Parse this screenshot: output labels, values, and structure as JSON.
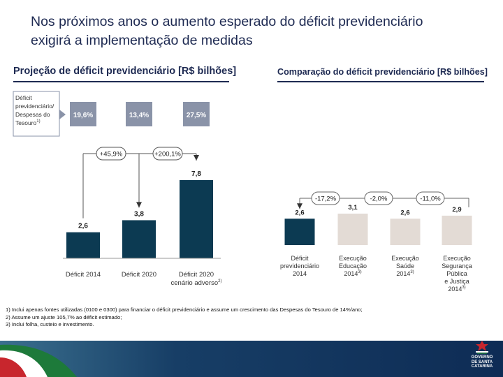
{
  "slide": {
    "title_line1": "Nos próximos anos o aumento esperado do déficit previdenciário",
    "title_line2": "exigirá a implementação de medidas"
  },
  "colors": {
    "navy": "#0c3a52",
    "beige": "#e3dbd5",
    "gray_box": "#8a93a8",
    "title": "#1e2a52"
  },
  "notes": [
    "1) Inclui apenas fontes utilizadas (0100 e 0300) para financiar o déficit previdenciário e assume um crescimento das Despesas do Tesouro de 14%/ano;",
    "2) Assume um ajuste 105,7% ao déficit estimado;",
    "3) Inclui folha, custeio e investimento."
  ],
  "logo": {
    "line1": "GOVERNO",
    "line2": "DE SANTA",
    "line3": "CATARINA"
  },
  "chart_data": [
    {
      "type": "bar",
      "title": "Projeção de déficit previdenciário [R$ bilhões]",
      "categories": [
        [
          "Déficit 2014"
        ],
        [
          "Déficit 2020"
        ],
        [
          "Déficit 2020",
          "cenário adverso"
        ]
      ],
      "category_superscripts": [
        "",
        "",
        "2)"
      ],
      "values": [
        2.6,
        3.8,
        7.8
      ],
      "value_labels": [
        "2,6",
        "3,8",
        "7,8"
      ],
      "colors": [
        "#0c3a52",
        "#0c3a52",
        "#0c3a52"
      ],
      "ratio_label": {
        "lines": [
          "Déficit",
          "previdenciário/",
          "Despesas do",
          "Tesouro"
        ],
        "superscript": "1)"
      },
      "ratio_values": [
        "19,6%",
        "13,4%",
        "27,5%"
      ],
      "growth_labels": [
        "+45,9%",
        "+200,1%"
      ],
      "ylim": [
        0,
        8.5
      ]
    },
    {
      "type": "bar",
      "title": "Comparação do déficit previdenciário [R$ bilhões]",
      "categories": [
        [
          "Déficit",
          "previdenciário",
          "2014"
        ],
        [
          "Execução",
          "Educação",
          "2014"
        ],
        [
          "Execução",
          "Saúde",
          "2014"
        ],
        [
          "Execução",
          "Segurança",
          "Pública",
          "e Justiça",
          "2014"
        ]
      ],
      "category_superscripts": [
        "",
        "3)",
        "3)",
        "3)"
      ],
      "values": [
        2.6,
        3.1,
        2.6,
        2.9
      ],
      "value_labels": [
        "2,6",
        "3,1",
        "2,6",
        "2,9"
      ],
      "colors": [
        "#0c3a52",
        "#e3dbd5",
        "#e3dbd5",
        "#e3dbd5"
      ],
      "diff_labels": [
        "-17,2%",
        "-2,0%",
        "-11,0%"
      ],
      "ylim": [
        0,
        8.5
      ]
    }
  ]
}
